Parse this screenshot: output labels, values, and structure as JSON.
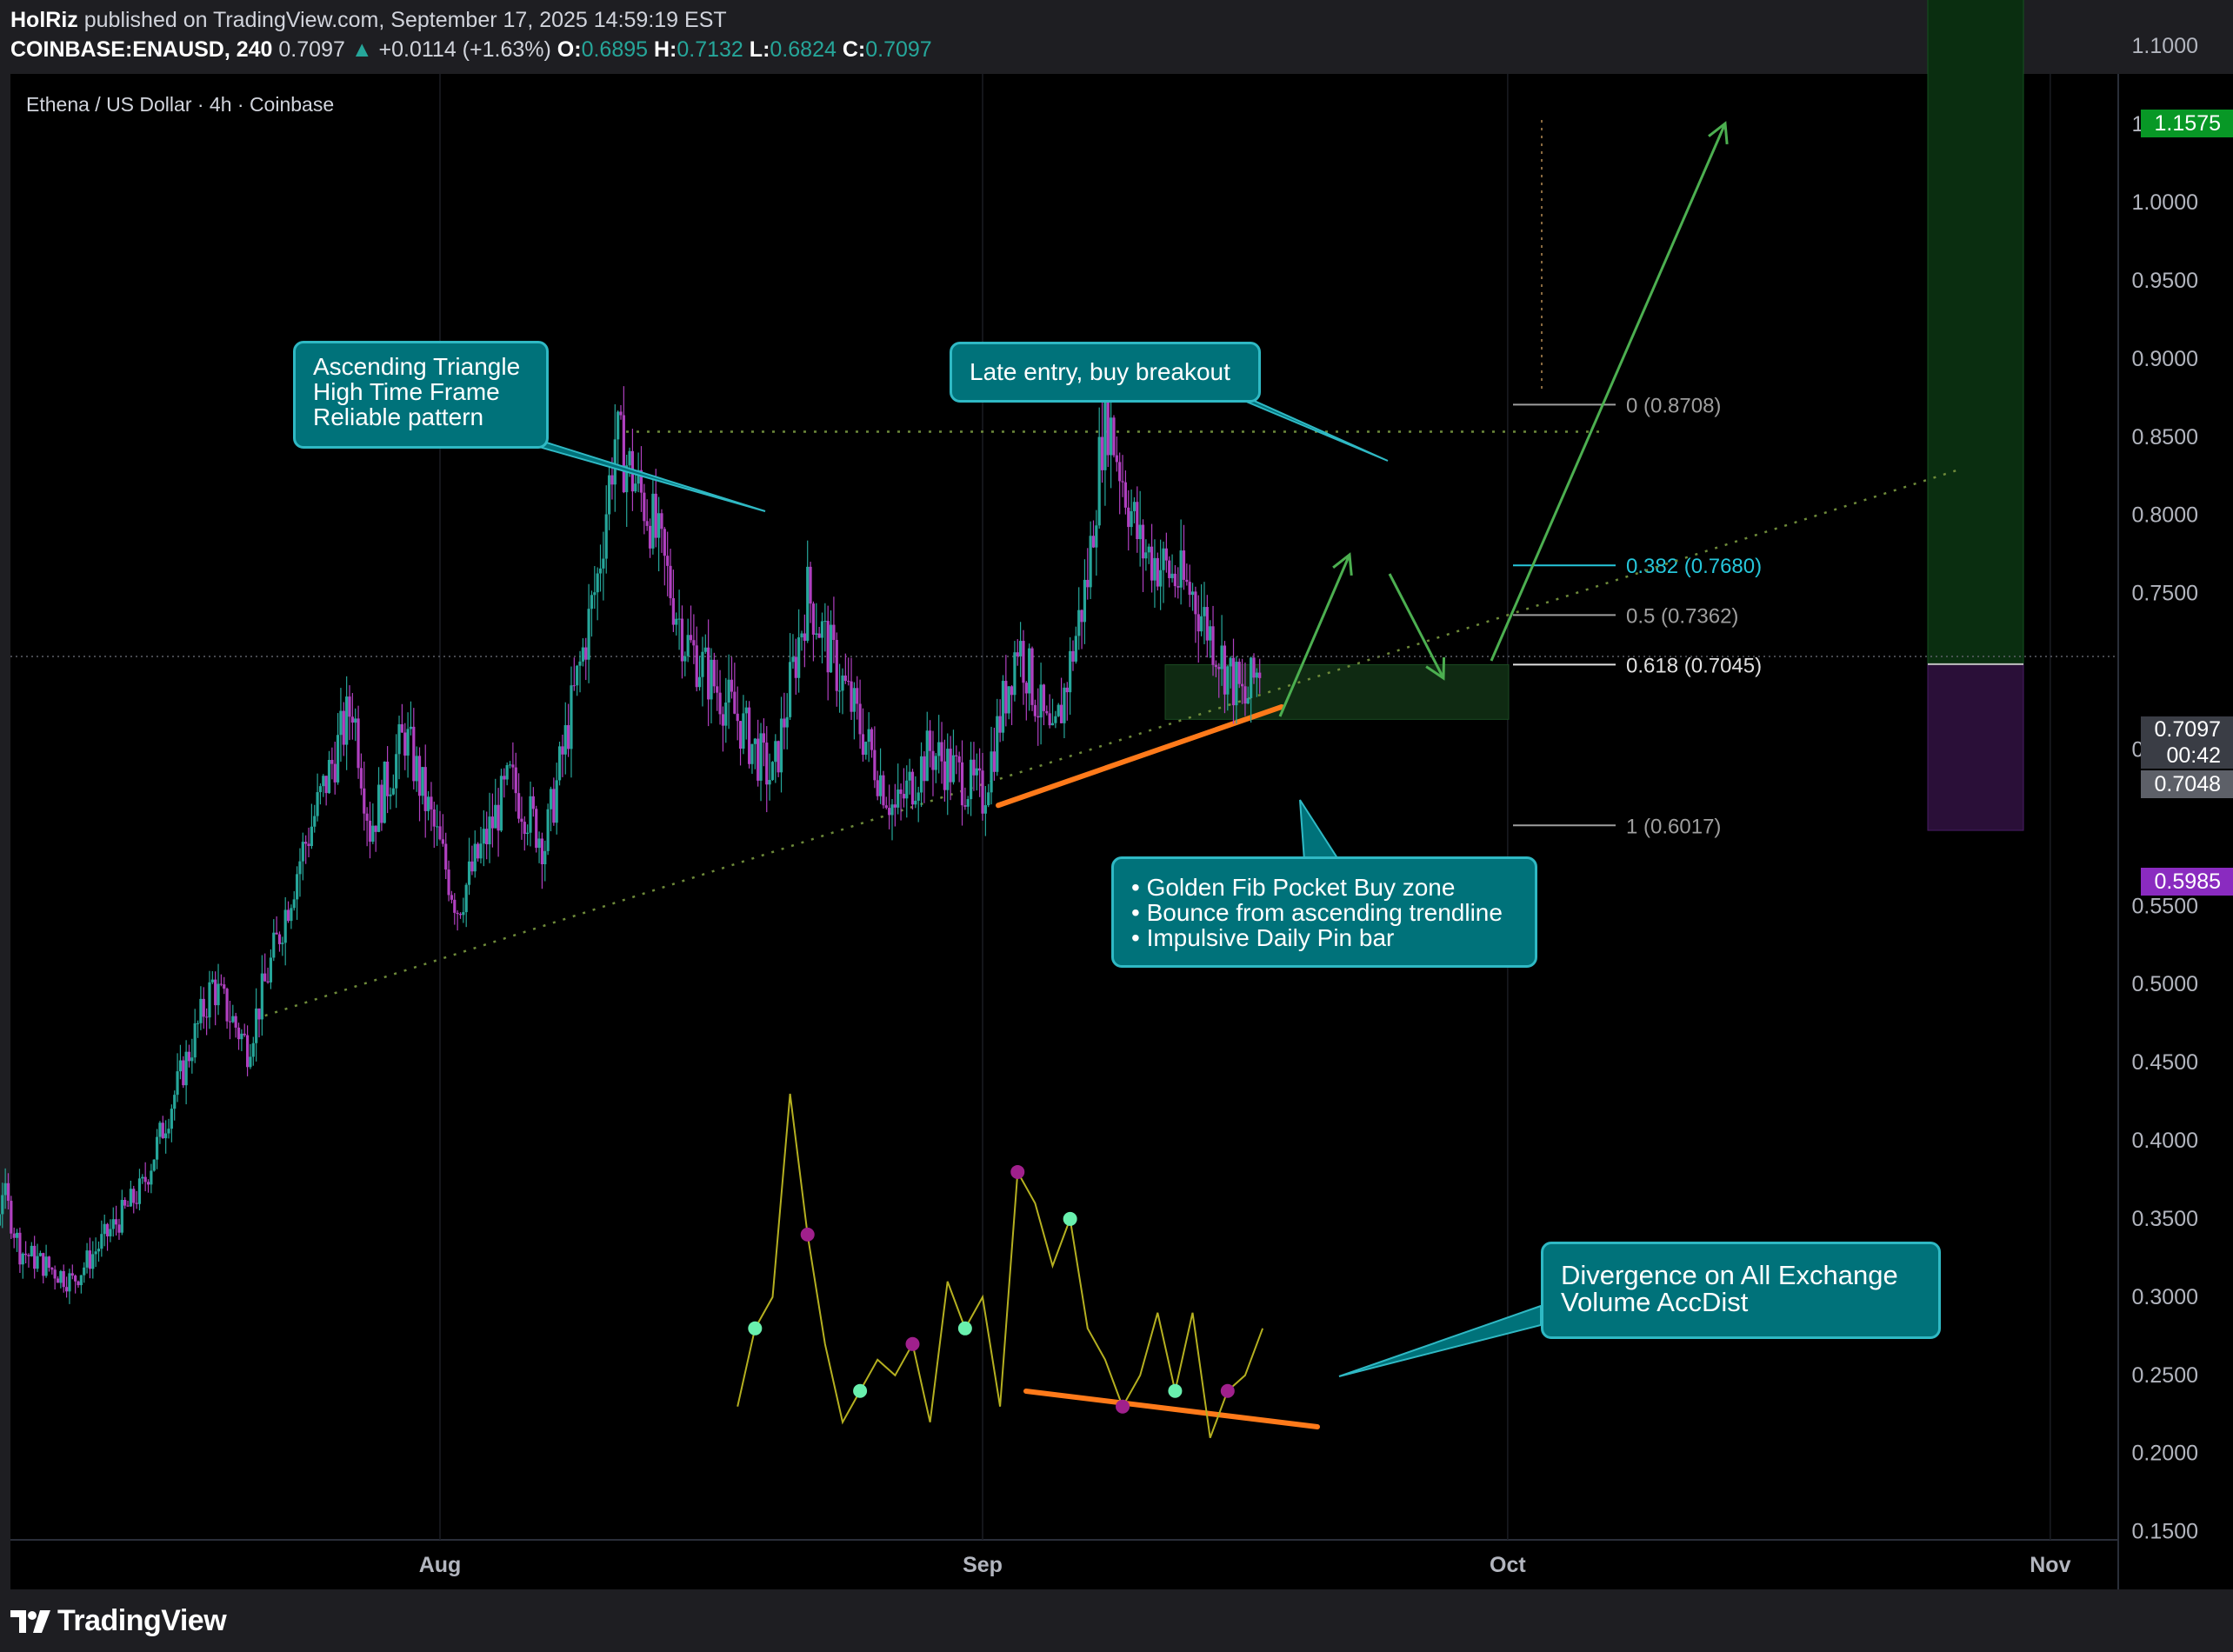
{
  "header": {
    "author": "HolRiz",
    "published_text": "published on TradingView.com, September 17, 2025 14:59:19 EST",
    "symbol": "COINBASE:ENAUSD, 240",
    "last": "0.7097",
    "change": "+0.0114 (+1.63%)",
    "o_label": "O:",
    "o_value": "0.6895",
    "h_label": "H:",
    "h_value": "0.7132",
    "l_label": "L:",
    "l_value": "0.6824",
    "c_label": "C:",
    "c_value": "0.7097"
  },
  "chart_title": "Ethena / US Dollar · 4h · Coinbase",
  "colors": {
    "background": "#000000",
    "up": "#26a69a",
    "down": "#b040c0",
    "note_fill": "#00727a",
    "note_border": "#2fb9c4",
    "trend_orange": "#ff7a1a",
    "arrow_green": "#4caf50",
    "oscillator": "#b5b020"
  },
  "notes": {
    "ascending": [
      "Ascending Triangle",
      "High Time Frame",
      "Reliable pattern"
    ],
    "late_entry": [
      "Late entry, buy breakout"
    ],
    "golden": [
      "• Golden Fib Pocket Buy zone",
      "• Bounce from ascending trendline",
      "• Impulsive Daily Pin bar"
    ],
    "divergence": [
      "Divergence on All Exchange",
      "Volume AccDist"
    ]
  },
  "fib_levels": [
    {
      "label": "0 (0.8708)",
      "value": 0.8708,
      "color": "#9e9e9e"
    },
    {
      "label": "0.382 (0.7680)",
      "value": 0.768,
      "color": "#26c6da"
    },
    {
      "label": "0.5 (0.7362)",
      "value": 0.7362,
      "color": "#9e9e9e"
    },
    {
      "label": "0.618 (0.7045)",
      "value": 0.7045,
      "color": "#e0e0e0"
    },
    {
      "label": "1 (0.6017)",
      "value": 0.6017,
      "color": "#9e9e9e"
    }
  ],
  "price_tags": {
    "target": "1.1575",
    "last": "0.7097",
    "countdown": "00:42",
    "entry": "0.7048",
    "stop": "0.5985"
  },
  "logo_text": "TradingView",
  "chart_data": {
    "type": "candlestick",
    "title": "Ethena / US Dollar · 4h · Coinbase",
    "y_axis": {
      "ticks": [
        "1.1000",
        "1.0500",
        "1.0000",
        "0.9500",
        "0.9000",
        "0.8500",
        "0.8000",
        "0.7500",
        "0.6500",
        "0.5500",
        "0.5000",
        "0.4500",
        "0.4000",
        "0.3500",
        "0.3000",
        "0.2500",
        "0.2000",
        "0.1500"
      ],
      "range": [
        0.12,
        1.18
      ]
    },
    "x_axis": {
      "ticks": [
        "Aug",
        "Sep",
        "Oct",
        "Nov"
      ],
      "range": [
        "2025-07-03",
        "2025-11-13"
      ]
    },
    "price_path": [
      {
        "x": "2025-07-03",
        "y": 0.26
      },
      {
        "x": "2025-07-06",
        "y": 0.3
      },
      {
        "x": "2025-07-07",
        "y": 0.37
      },
      {
        "x": "2025-07-08",
        "y": 0.33
      },
      {
        "x": "2025-07-11",
        "y": 0.31
      },
      {
        "x": "2025-07-15",
        "y": 0.37
      },
      {
        "x": "2025-07-19",
        "y": 0.5
      },
      {
        "x": "2025-07-21",
        "y": 0.46
      },
      {
        "x": "2025-07-24",
        "y": 0.58
      },
      {
        "x": "2025-07-27",
        "y": 0.68
      },
      {
        "x": "2025-07-28",
        "y": 0.6
      },
      {
        "x": "2025-07-30",
        "y": 0.66
      },
      {
        "x": "2025-08-02",
        "y": 0.55
      },
      {
        "x": "2025-08-05",
        "y": 0.63
      },
      {
        "x": "2025-08-07",
        "y": 0.59
      },
      {
        "x": "2025-08-10",
        "y": 0.76
      },
      {
        "x": "2025-08-11",
        "y": 0.85
      },
      {
        "x": "2025-08-13",
        "y": 0.8
      },
      {
        "x": "2025-08-15",
        "y": 0.72
      },
      {
        "x": "2025-08-18",
        "y": 0.67
      },
      {
        "x": "2025-08-20",
        "y": 0.63
      },
      {
        "x": "2025-08-22",
        "y": 0.75
      },
      {
        "x": "2025-08-23",
        "y": 0.72
      },
      {
        "x": "2025-08-27",
        "y": 0.61
      },
      {
        "x": "2025-08-29",
        "y": 0.65
      },
      {
        "x": "2025-09-01",
        "y": 0.62
      },
      {
        "x": "2025-09-03",
        "y": 0.72
      },
      {
        "x": "2025-09-05",
        "y": 0.65
      },
      {
        "x": "2025-09-07",
        "y": 0.76
      },
      {
        "x": "2025-09-08",
        "y": 0.87
      },
      {
        "x": "2025-09-10",
        "y": 0.78
      },
      {
        "x": "2025-09-13",
        "y": 0.75
      },
      {
        "x": "2025-09-15",
        "y": 0.7
      },
      {
        "x": "2025-09-16",
        "y": 0.68
      },
      {
        "x": "2025-09-17",
        "y": 0.7097
      }
    ],
    "oscillator": {
      "name": "All Exchange Volume AccDist",
      "values": [
        {
          "x": "2025-08-18",
          "y": 0.23
        },
        {
          "x": "2025-08-19",
          "y": 0.28
        },
        {
          "x": "2025-08-20",
          "y": 0.3
        },
        {
          "x": "2025-08-21",
          "y": 0.43
        },
        {
          "x": "2025-08-22",
          "y": 0.34
        },
        {
          "x": "2025-08-23",
          "y": 0.27
        },
        {
          "x": "2025-08-24",
          "y": 0.22
        },
        {
          "x": "2025-08-25",
          "y": 0.24
        },
        {
          "x": "2025-08-26",
          "y": 0.26
        },
        {
          "x": "2025-08-27",
          "y": 0.25
        },
        {
          "x": "2025-08-28",
          "y": 0.27
        },
        {
          "x": "2025-08-29",
          "y": 0.22
        },
        {
          "x": "2025-08-30",
          "y": 0.31
        },
        {
          "x": "2025-08-31",
          "y": 0.28
        },
        {
          "x": "2025-09-01",
          "y": 0.3
        },
        {
          "x": "2025-09-02",
          "y": 0.23
        },
        {
          "x": "2025-09-03",
          "y": 0.38
        },
        {
          "x": "2025-09-04",
          "y": 0.36
        },
        {
          "x": "2025-09-05",
          "y": 0.32
        },
        {
          "x": "2025-09-06",
          "y": 0.35
        },
        {
          "x": "2025-09-07",
          "y": 0.28
        },
        {
          "x": "2025-09-08",
          "y": 0.26
        },
        {
          "x": "2025-09-09",
          "y": 0.23
        },
        {
          "x": "2025-09-10",
          "y": 0.25
        },
        {
          "x": "2025-09-11",
          "y": 0.29
        },
        {
          "x": "2025-09-12",
          "y": 0.24
        },
        {
          "x": "2025-09-13",
          "y": 0.29
        },
        {
          "x": "2025-09-14",
          "y": 0.21
        },
        {
          "x": "2025-09-15",
          "y": 0.24
        },
        {
          "x": "2025-09-16",
          "y": 0.25
        },
        {
          "x": "2025-09-17",
          "y": 0.28
        }
      ]
    },
    "resistance": 0.8535,
    "trendline": [
      {
        "x": "2025-07-22",
        "y": 0.48
      },
      {
        "x": "2025-10-27",
        "y": 0.83
      }
    ],
    "long_position": {
      "entry": 0.7048,
      "target": 1.1575,
      "stop": 0.5985
    },
    "last_price": 0.7097
  }
}
